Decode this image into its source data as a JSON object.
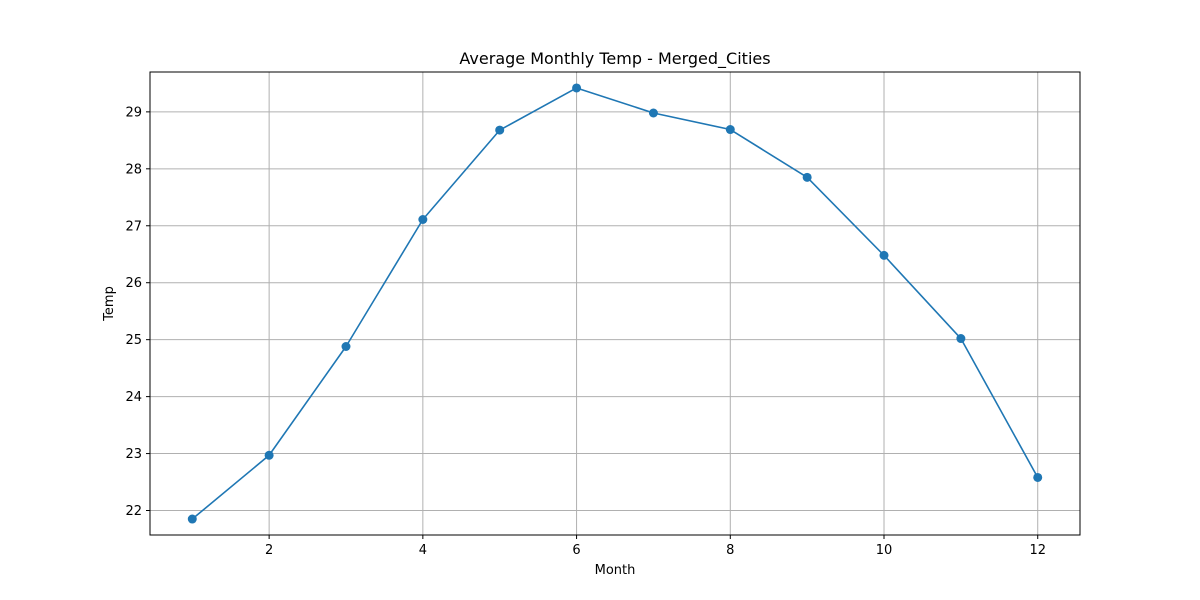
{
  "chart_data": {
    "type": "line",
    "title": "Average Monthly Temp - Merged_Cities",
    "xlabel": "Month",
    "ylabel": "Temp",
    "x": [
      1,
      2,
      3,
      4,
      5,
      6,
      7,
      8,
      9,
      10,
      11,
      12
    ],
    "series": [
      {
        "values": [
          21.85,
          22.97,
          24.88,
          27.11,
          28.68,
          29.42,
          28.98,
          28.69,
          27.85,
          26.48,
          25.02,
          22.58
        ],
        "color": "#1f77b4",
        "marker": "circle"
      }
    ],
    "xlim": [
      0.45,
      12.55
    ],
    "ylim": [
      21.57,
      29.7
    ],
    "xticks": [
      2,
      4,
      6,
      8,
      10,
      12
    ],
    "yticks": [
      22,
      23,
      24,
      25,
      26,
      27,
      28,
      29
    ],
    "grid": true
  }
}
